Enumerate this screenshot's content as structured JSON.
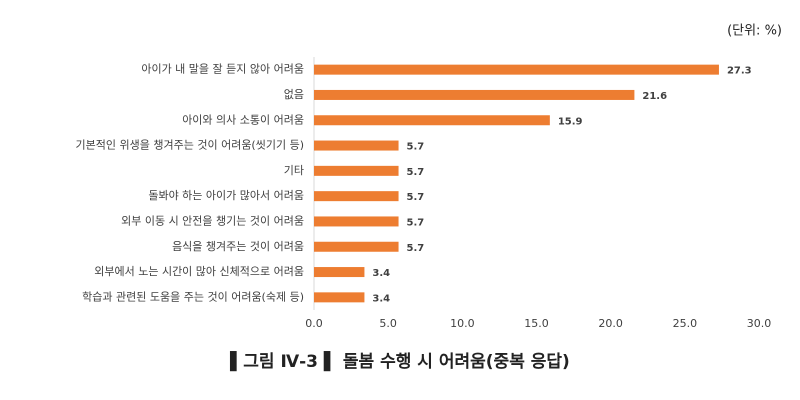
{
  "chart_data": {
    "type": "bar",
    "orientation": "horizontal",
    "title": "▌그림 Ⅳ-3 ▌ 돌봄 수행 시 어려움(중복 응답)",
    "unit_label": "(단위: %)",
    "categories": [
      "아이가 내 말을 잘 듣지 않아 어려움",
      "없음",
      "아이와 의사 소통이 어려움",
      "기본적인 위생을 챙겨주는 것이 어려움(씻기기 등)",
      "기타",
      "돌봐야 하는 아이가 많아서 어려움",
      "외부 이동 시 안전을 챙기는 것이 어려움",
      "음식을 챙겨주는 것이 어려움",
      "외부에서 노는 시간이 많아 신체적으로 어려움",
      "학습과 관련된 도움을 주는 것이 어려움(숙제 등)"
    ],
    "values": [
      27.3,
      21.6,
      15.9,
      5.7,
      5.7,
      5.7,
      5.7,
      5.7,
      3.4,
      3.4
    ],
    "color": "#ed7d31",
    "xlim": [
      0,
      30
    ],
    "xticks": [
      {
        "value": 0,
        "label": "0.0"
      },
      {
        "value": 5,
        "label": "5.0"
      },
      {
        "value": 10,
        "label": "10.0"
      },
      {
        "value": 15,
        "label": "15.0"
      },
      {
        "value": 20,
        "label": "20.0"
      },
      {
        "value": 25,
        "label": "25.0"
      },
      {
        "value": 30,
        "label": "30.0"
      }
    ],
    "grid": false
  }
}
